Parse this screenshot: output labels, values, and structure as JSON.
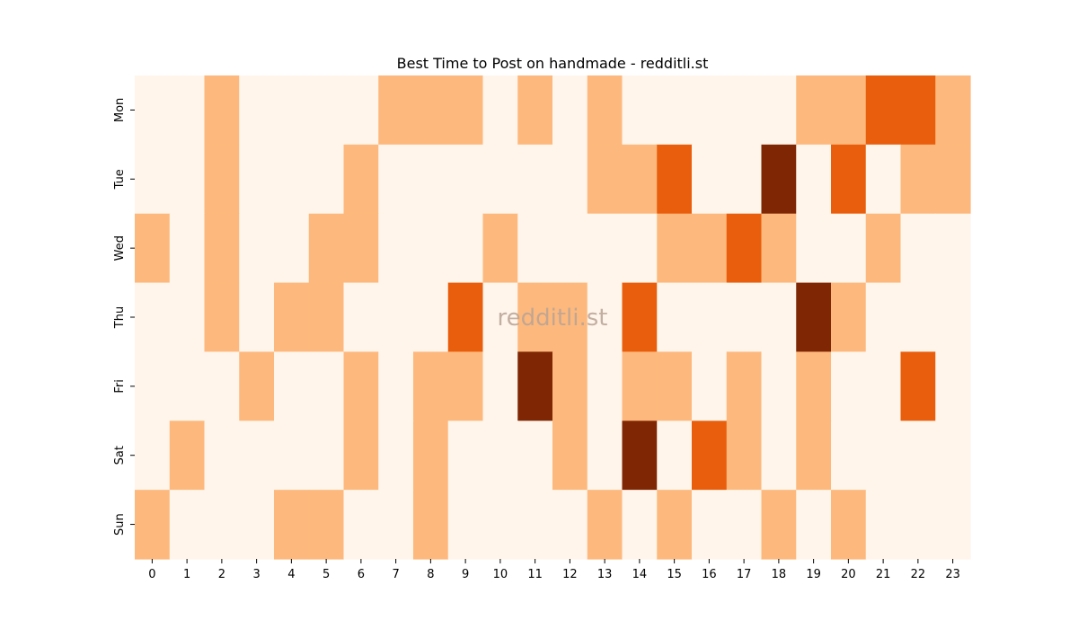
{
  "chart_data": {
    "type": "heatmap",
    "title": "Best Time to Post on handmade - redditli.st",
    "watermark": "redditli.st",
    "x_categories": [
      "0",
      "1",
      "2",
      "3",
      "4",
      "5",
      "6",
      "7",
      "8",
      "9",
      "10",
      "11",
      "12",
      "13",
      "14",
      "15",
      "16",
      "17",
      "18",
      "19",
      "20",
      "21",
      "22",
      "23"
    ],
    "y_categories": [
      "Mon",
      "Tue",
      "Wed",
      "Thu",
      "Fri",
      "Sat",
      "Sun"
    ],
    "levels": 4,
    "colors": [
      "#fff5eb",
      "#fdb97d",
      "#e95e0d",
      "#7f2704"
    ],
    "values": [
      [
        0,
        0,
        1,
        0,
        0,
        0,
        0,
        1,
        1,
        1,
        0,
        1,
        0,
        1,
        0,
        0,
        0,
        0,
        0,
        1,
        1,
        2,
        2,
        1
      ],
      [
        0,
        0,
        1,
        0,
        0,
        0,
        1,
        0,
        0,
        0,
        0,
        0,
        0,
        1,
        1,
        2,
        0,
        0,
        3,
        0,
        2,
        0,
        1,
        1
      ],
      [
        1,
        0,
        1,
        0,
        0,
        1,
        1,
        0,
        0,
        0,
        1,
        0,
        0,
        0,
        0,
        1,
        1,
        2,
        1,
        0,
        0,
        1,
        0,
        0
      ],
      [
        0,
        0,
        1,
        0,
        1,
        1,
        0,
        0,
        0,
        2,
        0,
        1,
        1,
        0,
        2,
        0,
        0,
        0,
        0,
        3,
        1,
        0,
        0,
        0
      ],
      [
        0,
        0,
        0,
        1,
        0,
        0,
        1,
        0,
        1,
        1,
        0,
        3,
        1,
        0,
        1,
        1,
        0,
        1,
        0,
        1,
        0,
        0,
        2,
        0
      ],
      [
        0,
        1,
        0,
        0,
        0,
        0,
        1,
        0,
        1,
        0,
        0,
        0,
        1,
        0,
        3,
        0,
        2,
        1,
        0,
        1,
        0,
        0,
        0,
        0
      ],
      [
        1,
        0,
        0,
        0,
        1,
        1,
        0,
        0,
        1,
        0,
        0,
        0,
        0,
        1,
        0,
        1,
        0,
        0,
        1,
        0,
        1,
        0,
        0,
        0
      ]
    ],
    "grid": false,
    "legend": "none"
  }
}
